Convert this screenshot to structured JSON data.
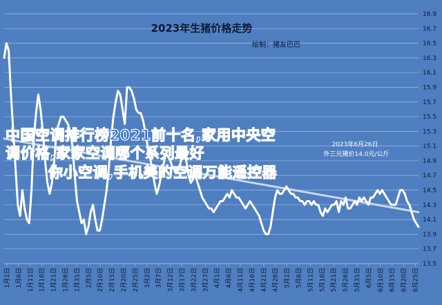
{
  "chart_data": {
    "type": "line",
    "title": "2023年生猪价格走势",
    "subtitle": "绘制：猪友巴巴",
    "yticks": [
      "13.5",
      "13.7",
      "13.9",
      "14.1",
      "14.3",
      "14.5",
      "14.7",
      "14.9",
      "15.1",
      "15.3",
      "15.5",
      "15.7",
      "15.9",
      "16.1",
      "16.3",
      "16.5",
      "16.7",
      "16.9"
    ],
    "ylim": [
      13.5,
      16.9
    ],
    "xtick_labels": [
      "1月1日",
      "1月6日",
      "1月11日",
      "1月16日",
      "1月21日",
      "1月26日",
      "1月31日",
      "2月5日",
      "2月10日",
      "2月15日",
      "2月20日",
      "2月25日",
      "3月2日",
      "3月7日",
      "3月12日",
      "3月17日",
      "3月22日",
      "3月27日",
      "4月1日",
      "4月6日",
      "4月11日",
      "4月16日",
      "4月21日",
      "4月26日",
      "5月1日",
      "5月6日",
      "5月11日",
      "5月16日",
      "5月21日",
      "5月26日",
      "5月31日",
      "6月5日",
      "6月10日",
      "6月15日",
      "6月20日",
      "6月25日"
    ],
    "annotation": [
      "2023年6月26日",
      "外三元猪价14.0元/公斤"
    ],
    "grid": true,
    "legend": "none",
    "colors": {
      "background": "#4f7fc0",
      "line": "#ffffff",
      "trend": "#c9d6ea",
      "grid": "#9fbbe0"
    },
    "series": [
      {
        "values": [
          16.3,
          16.5,
          16.4,
          15.8,
          15.3,
          14.8,
          14.3,
          14.15,
          14.5,
          14.25,
          14.1,
          14.05,
          14.5,
          15.2,
          15.55,
          15.8,
          15.6,
          15.3,
          14.9,
          14.6,
          14.45,
          14.6,
          14.9,
          15.3,
          15.4,
          15.5,
          15.5,
          15.45,
          15.4,
          15.3,
          15.1,
          14.7,
          14.35,
          14.2,
          14.05,
          14.1,
          13.9,
          14.0,
          14.2,
          14.3,
          14.1,
          13.95,
          13.95,
          14.1,
          14.3,
          14.5,
          14.8,
          15.2,
          15.5,
          15.7,
          15.85,
          15.8,
          15.6,
          15.4,
          15.9,
          15.9,
          15.85,
          15.75,
          15.6,
          15.55,
          15.55,
          15.45,
          15.3,
          15.1,
          14.95,
          14.8,
          14.6,
          14.45,
          14.55,
          14.7,
          14.85,
          15.0,
          14.95,
          14.9,
          14.8,
          14.8,
          14.75,
          14.8,
          14.95,
          15.0,
          14.9,
          14.7,
          14.6,
          14.65,
          14.7,
          14.6,
          14.5,
          14.4,
          14.35,
          14.3,
          14.25,
          14.25,
          14.2,
          14.25,
          14.3,
          14.35,
          14.35,
          14.4,
          14.45,
          14.4,
          14.5,
          14.45,
          14.4,
          14.4,
          14.35,
          14.3,
          14.25,
          14.3,
          14.35,
          14.3,
          14.25,
          14.2,
          14.15,
          14.05,
          13.95,
          13.9,
          13.9,
          14.0,
          14.2,
          14.4,
          14.5,
          14.45,
          14.45,
          14.5,
          14.55,
          14.5,
          14.45,
          14.45,
          14.4,
          14.4,
          14.35,
          14.35,
          14.3,
          14.35,
          14.35,
          14.3,
          14.35,
          14.3,
          14.3,
          14.2,
          14.15,
          14.25,
          14.2,
          14.25,
          14.3,
          14.3,
          14.35,
          14.2,
          14.35,
          14.3,
          14.4,
          14.25,
          14.25,
          14.3,
          14.35,
          14.3,
          14.4,
          14.35,
          14.4,
          14.35,
          14.3,
          14.4,
          14.4,
          14.45,
          14.5,
          14.45,
          14.5,
          14.45,
          14.4,
          14.35,
          14.3,
          14.3,
          14.3,
          14.4,
          14.5,
          14.5,
          14.45,
          14.35,
          14.3,
          14.2,
          14.1,
          14.05,
          14.0
        ]
      }
    ],
    "trendline": [
      15.2,
      14.2
    ]
  },
  "watermark": {
    "line1": "中国空调排行榜2021前十名,家用中央空",
    "line2": "调价格,家家空调哪个系列最好",
    "line3": "你小空调,手机美的空调万能遥控器"
  }
}
